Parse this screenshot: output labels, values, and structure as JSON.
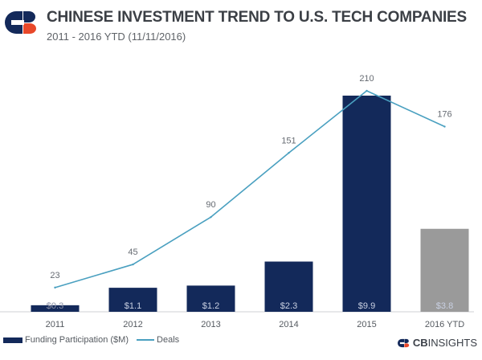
{
  "header": {
    "title": "CHINESE INVESTMENT TREND TO U.S. TECH COMPANIES",
    "subtitle": "2011 - 2016 YTD (11/11/2016)"
  },
  "chart_data": {
    "type": "bar",
    "categories": [
      "2011",
      "2012",
      "2013",
      "2014",
      "2015",
      "2016 YTD"
    ],
    "series": [
      {
        "name": "Funding Participation ($M)",
        "kind": "bar",
        "values": [
          0.3,
          1.1,
          1.2,
          2.3,
          9.9,
          3.8
        ],
        "labels": [
          "$0.3",
          "$1.1",
          "$1.2",
          "$2.3",
          "$9.9",
          "$3.8"
        ]
      },
      {
        "name": "Deals",
        "kind": "line",
        "values": [
          23,
          45,
          90,
          151,
          210,
          176
        ],
        "labels": [
          "23",
          "45",
          "90",
          "151",
          "210",
          "176"
        ]
      }
    ],
    "colors": {
      "bar": "#13295a",
      "bar_highlight": "#9a9a9a",
      "line": "#4aa0c0"
    },
    "bar_ylim": [
      0,
      10.5
    ],
    "line_ylim": [
      0,
      225
    ],
    "grid": false
  },
  "legend": {
    "bar_label": "Funding Participation ($M)",
    "line_label": "Deals"
  },
  "brand": {
    "bold": "CB",
    "rest": "INSIGHTS"
  }
}
